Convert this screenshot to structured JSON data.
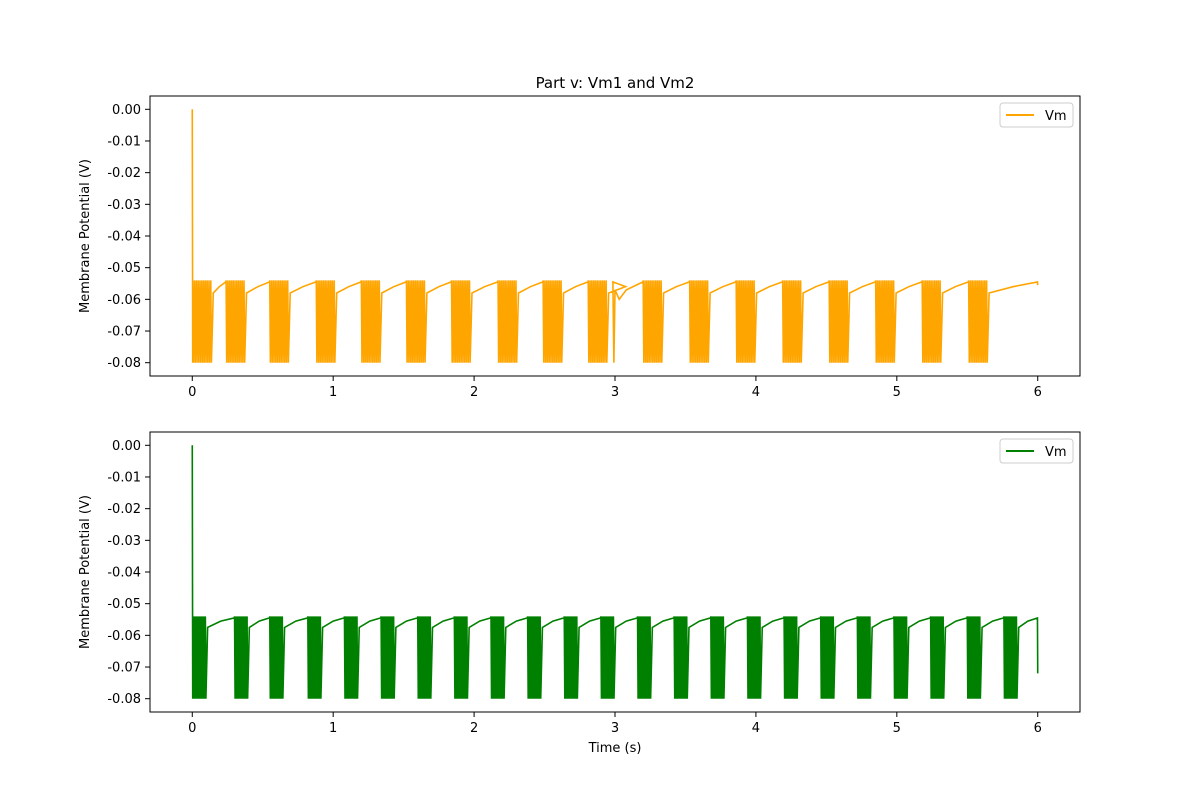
{
  "chart_data": [
    {
      "type": "line",
      "title": "Part v: Vm1 and Vm2",
      "xlabel": "",
      "ylabel": "Membrane Potential (V)",
      "xlim": [
        -0.3,
        6.3
      ],
      "ylim": [
        -0.0842,
        0.0042
      ],
      "xticks": [
        0,
        1,
        2,
        3,
        4,
        5,
        6
      ],
      "xtick_labels": [
        "0",
        "1",
        "2",
        "3",
        "4",
        "5",
        "6"
      ],
      "yticks": [
        0.0,
        -0.01,
        -0.02,
        -0.03,
        -0.04,
        -0.05,
        -0.06,
        -0.07,
        -0.08
      ],
      "ytick_labels": [
        "0.00",
        "-0.01",
        "-0.02",
        "-0.03",
        "-0.04",
        "-0.05",
        "-0.06",
        "-0.07",
        "-0.08"
      ],
      "grid": false,
      "legend_position": "top-right",
      "series": [
        {
          "name": "Vm",
          "color": "#ffa500",
          "initial_value": 0.0,
          "spike_threshold": -0.054,
          "reset_value": -0.08,
          "burst_starts": [
            0.0,
            0.24,
            0.55,
            0.88,
            1.2,
            1.52,
            1.84,
            2.17,
            2.49,
            2.81,
            3.2,
            3.53,
            3.86,
            4.19,
            4.52,
            4.85,
            5.18,
            5.51
          ],
          "burst_duration": 0.14,
          "spikes_per_burst": 11,
          "inter_burst_level": -0.056,
          "dip_at_3s": -0.06,
          "x_end": 6.0,
          "end_value": -0.0555
        }
      ]
    },
    {
      "type": "line",
      "title": "",
      "xlabel": "Time (s)",
      "ylabel": "Membrane Potential (V)",
      "xlim": [
        -0.3,
        6.3
      ],
      "ylim": [
        -0.0842,
        0.0042
      ],
      "xticks": [
        0,
        1,
        2,
        3,
        4,
        5,
        6
      ],
      "xtick_labels": [
        "0",
        "1",
        "2",
        "3",
        "4",
        "5",
        "6"
      ],
      "yticks": [
        0.0,
        -0.01,
        -0.02,
        -0.03,
        -0.04,
        -0.05,
        -0.06,
        -0.07,
        -0.08
      ],
      "ytick_labels": [
        "0.00",
        "-0.01",
        "-0.02",
        "-0.03",
        "-0.04",
        "-0.05",
        "-0.06",
        "-0.07",
        "-0.08"
      ],
      "grid": false,
      "legend_position": "top-right",
      "series": [
        {
          "name": "Vm",
          "color": "#008000",
          "initial_value": 0.0,
          "spike_threshold": -0.054,
          "reset_value": -0.08,
          "burst_starts": [
            0.0,
            0.3,
            0.55,
            0.82,
            1.08,
            1.34,
            1.6,
            1.86,
            2.12,
            2.38,
            2.64,
            2.9,
            3.16,
            3.42,
            3.68,
            3.94,
            4.2,
            4.46,
            4.72,
            4.98,
            5.24,
            5.5,
            5.76
          ],
          "burst_duration": 0.1,
          "spikes_per_burst": 9,
          "inter_burst_level": -0.0555,
          "x_end": 6.0,
          "end_value": -0.072
        }
      ]
    }
  ]
}
